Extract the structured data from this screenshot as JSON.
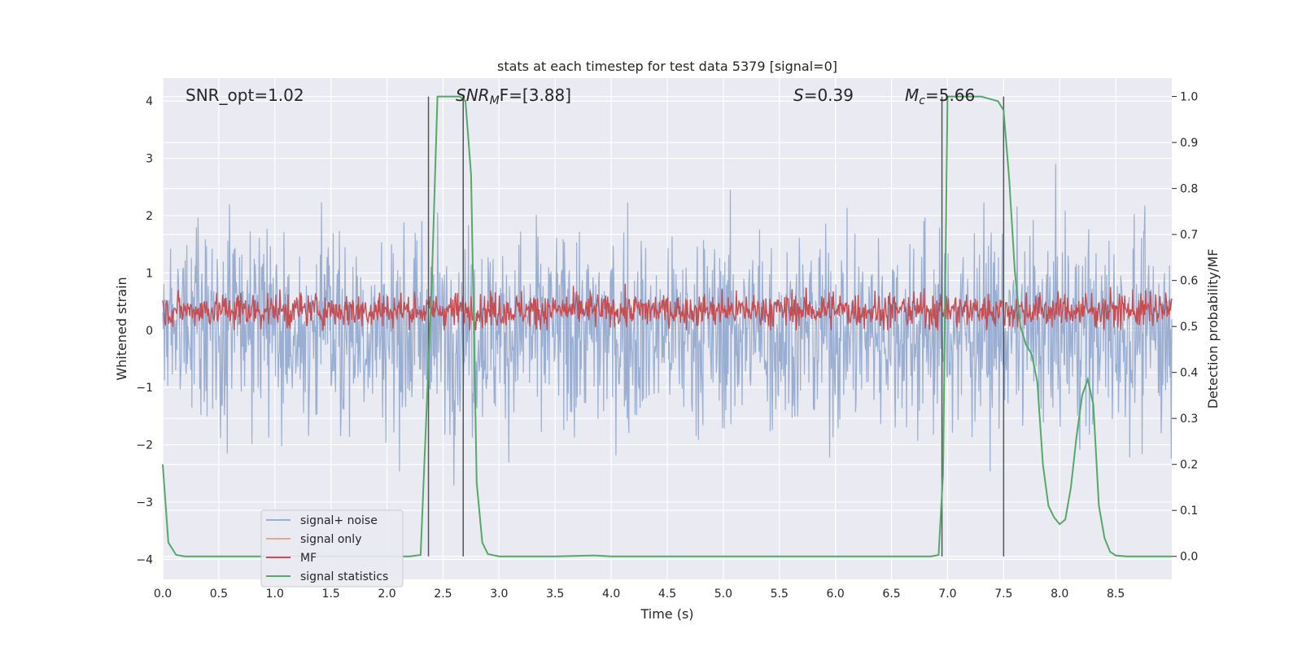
{
  "chart_data": {
    "type": "line",
    "title": "stats at each timestep for test data 5379 [signal=0]",
    "xlabel": "Time (s)",
    "ylabel_left": "Whitened strain",
    "ylabel_right": "Detection probability/MF",
    "xlim": [
      0.0,
      9.0
    ],
    "ylim_left": [
      -4.35,
      4.4
    ],
    "ylim_right": [
      -0.05,
      1.04
    ],
    "xticks": [
      "0.0",
      "0.5",
      "1.0",
      "1.5",
      "2.0",
      "2.5",
      "3.0",
      "3.5",
      "4.0",
      "4.5",
      "5.0",
      "5.5",
      "6.0",
      "6.5",
      "7.0",
      "7.5",
      "8.0",
      "8.5"
    ],
    "yticks_left": [
      "4",
      "3",
      "2",
      "1",
      "0",
      "−1",
      "−2",
      "−3",
      "−4"
    ],
    "yticks_right": [
      "1.0",
      "0.9",
      "0.8",
      "0.7",
      "0.6",
      "0.5",
      "0.4",
      "0.3",
      "0.2",
      "0.1",
      "0.0"
    ],
    "grid": true,
    "legend_placement": "lower-left",
    "annotations": {
      "snr_opt": "SNR_opt=1.02",
      "snr_mf_main": "SNR",
      "snr_mf_sub": "M",
      "snr_mf_rest": "F=[3.88]",
      "s_main": "S",
      "s_rest": "=0.39",
      "mc_main": "M",
      "mc_sub": "c",
      "mc_rest": "=5.66"
    },
    "vertical_lines_x": [
      2.37,
      2.68,
      6.95,
      7.5
    ],
    "series": [
      {
        "name": "signal+ noise",
        "color": "#9aaed2",
        "noise_std": 1.0,
        "noise_range": [
          -3.8,
          4.0
        ]
      },
      {
        "name": "signal only",
        "color": "#e8a98a"
      },
      {
        "name": "MF",
        "color": "#c44e52",
        "mean": 0.35,
        "range": [
          0.0,
          0.98
        ]
      },
      {
        "name": "signal statistics",
        "color": "#55a868",
        "x": [
          0.0,
          0.05,
          0.12,
          0.2,
          0.5,
          1.0,
          1.5,
          2.0,
          2.2,
          2.3,
          2.4,
          2.45,
          2.5,
          2.65,
          2.7,
          2.75,
          2.8,
          2.85,
          2.9,
          3.0,
          3.5,
          3.85,
          4.0,
          5.0,
          6.0,
          6.5,
          6.85,
          6.92,
          6.96,
          7.0,
          7.3,
          7.45,
          7.5,
          7.55,
          7.6,
          7.65,
          7.7,
          7.75,
          7.8,
          7.85,
          7.9,
          7.95,
          8.0,
          8.05,
          8.1,
          8.15,
          8.2,
          8.25,
          8.3,
          8.35,
          8.4,
          8.45,
          8.5,
          8.6,
          9.0
        ],
        "y": [
          0.2,
          0.03,
          0.003,
          0.0,
          0.0,
          0.0,
          0.0,
          0.0,
          0.0,
          0.003,
          0.6,
          1.0,
          1.0,
          1.0,
          0.99,
          0.83,
          0.16,
          0.03,
          0.005,
          0.0,
          0.0,
          0.002,
          0.0,
          0.0,
          0.0,
          0.0,
          0.0,
          0.003,
          0.18,
          1.0,
          1.0,
          0.99,
          0.97,
          0.82,
          0.62,
          0.5,
          0.46,
          0.44,
          0.38,
          0.2,
          0.11,
          0.085,
          0.07,
          0.08,
          0.15,
          0.26,
          0.35,
          0.385,
          0.33,
          0.11,
          0.04,
          0.01,
          0.002,
          0.0,
          0.0
        ]
      }
    ]
  }
}
